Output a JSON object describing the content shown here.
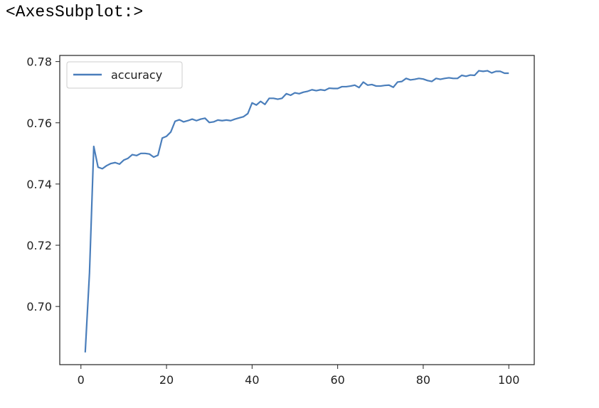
{
  "output_label": "<AxesSubplot:>",
  "colors": {
    "series": "#4a7ebb",
    "axes": "#222222",
    "legend_border": "#cccccc"
  },
  "chart_data": {
    "type": "line",
    "title": "",
    "xlabel": "",
    "ylabel": "",
    "xlim": [
      -4.95,
      105.95
    ],
    "ylim": [
      0.681,
      0.782
    ],
    "grid": false,
    "legend_position": "top-left",
    "x_ticks": [
      0,
      20,
      40,
      60,
      80,
      100
    ],
    "x_tick_labels": [
      "0",
      "20",
      "40",
      "60",
      "80",
      "100"
    ],
    "y_ticks": [
      0.7,
      0.72,
      0.74,
      0.76,
      0.78
    ],
    "y_tick_labels": [
      "0.70",
      "0.72",
      "0.74",
      "0.76",
      "0.78"
    ],
    "series": [
      {
        "name": "accuracy",
        "x": [
          1,
          2,
          3,
          4,
          5,
          6,
          7,
          8,
          9,
          10,
          11,
          12,
          13,
          14,
          15,
          16,
          17,
          18,
          19,
          20,
          21,
          22,
          23,
          24,
          25,
          26,
          27,
          28,
          29,
          30,
          31,
          32,
          33,
          34,
          35,
          36,
          37,
          38,
          39,
          40,
          41,
          42,
          43,
          44,
          45,
          46,
          47,
          48,
          49,
          50,
          51,
          52,
          53,
          54,
          55,
          56,
          57,
          58,
          59,
          60,
          61,
          62,
          63,
          64,
          65,
          66,
          67,
          68,
          69,
          70,
          71,
          72,
          73,
          74,
          75,
          76,
          77,
          78,
          79,
          80,
          81,
          82,
          83,
          84,
          85,
          86,
          87,
          88,
          89,
          90,
          91,
          92,
          93,
          94,
          95,
          96,
          97,
          98,
          99,
          100
        ],
        "y": [
          0.685,
          0.711,
          0.7523,
          0.7455,
          0.745,
          0.746,
          0.7467,
          0.747,
          0.7465,
          0.7478,
          0.7484,
          0.7496,
          0.7493,
          0.75,
          0.75,
          0.7498,
          0.7488,
          0.7494,
          0.755,
          0.7556,
          0.757,
          0.7605,
          0.761,
          0.7603,
          0.7607,
          0.7612,
          0.7607,
          0.7612,
          0.7615,
          0.7601,
          0.7603,
          0.7609,
          0.7607,
          0.7609,
          0.7607,
          0.7612,
          0.7616,
          0.762,
          0.763,
          0.7665,
          0.7658,
          0.767,
          0.766,
          0.768,
          0.768,
          0.7677,
          0.768,
          0.7695,
          0.769,
          0.7698,
          0.7695,
          0.77,
          0.7703,
          0.7708,
          0.7705,
          0.7708,
          0.7706,
          0.7713,
          0.7712,
          0.7712,
          0.7718,
          0.7718,
          0.772,
          0.7723,
          0.7715,
          0.7733,
          0.7723,
          0.7725,
          0.772,
          0.772,
          0.7722,
          0.7723,
          0.7716,
          0.7733,
          0.7735,
          0.7745,
          0.774,
          0.7742,
          0.7745,
          0.7743,
          0.7738,
          0.7735,
          0.7745,
          0.7742,
          0.7745,
          0.7747,
          0.7745,
          0.7745,
          0.7755,
          0.7752,
          0.7756,
          0.7755,
          0.777,
          0.7768,
          0.777,
          0.7763,
          0.7768,
          0.7768,
          0.7762,
          0.7762
        ]
      }
    ]
  }
}
